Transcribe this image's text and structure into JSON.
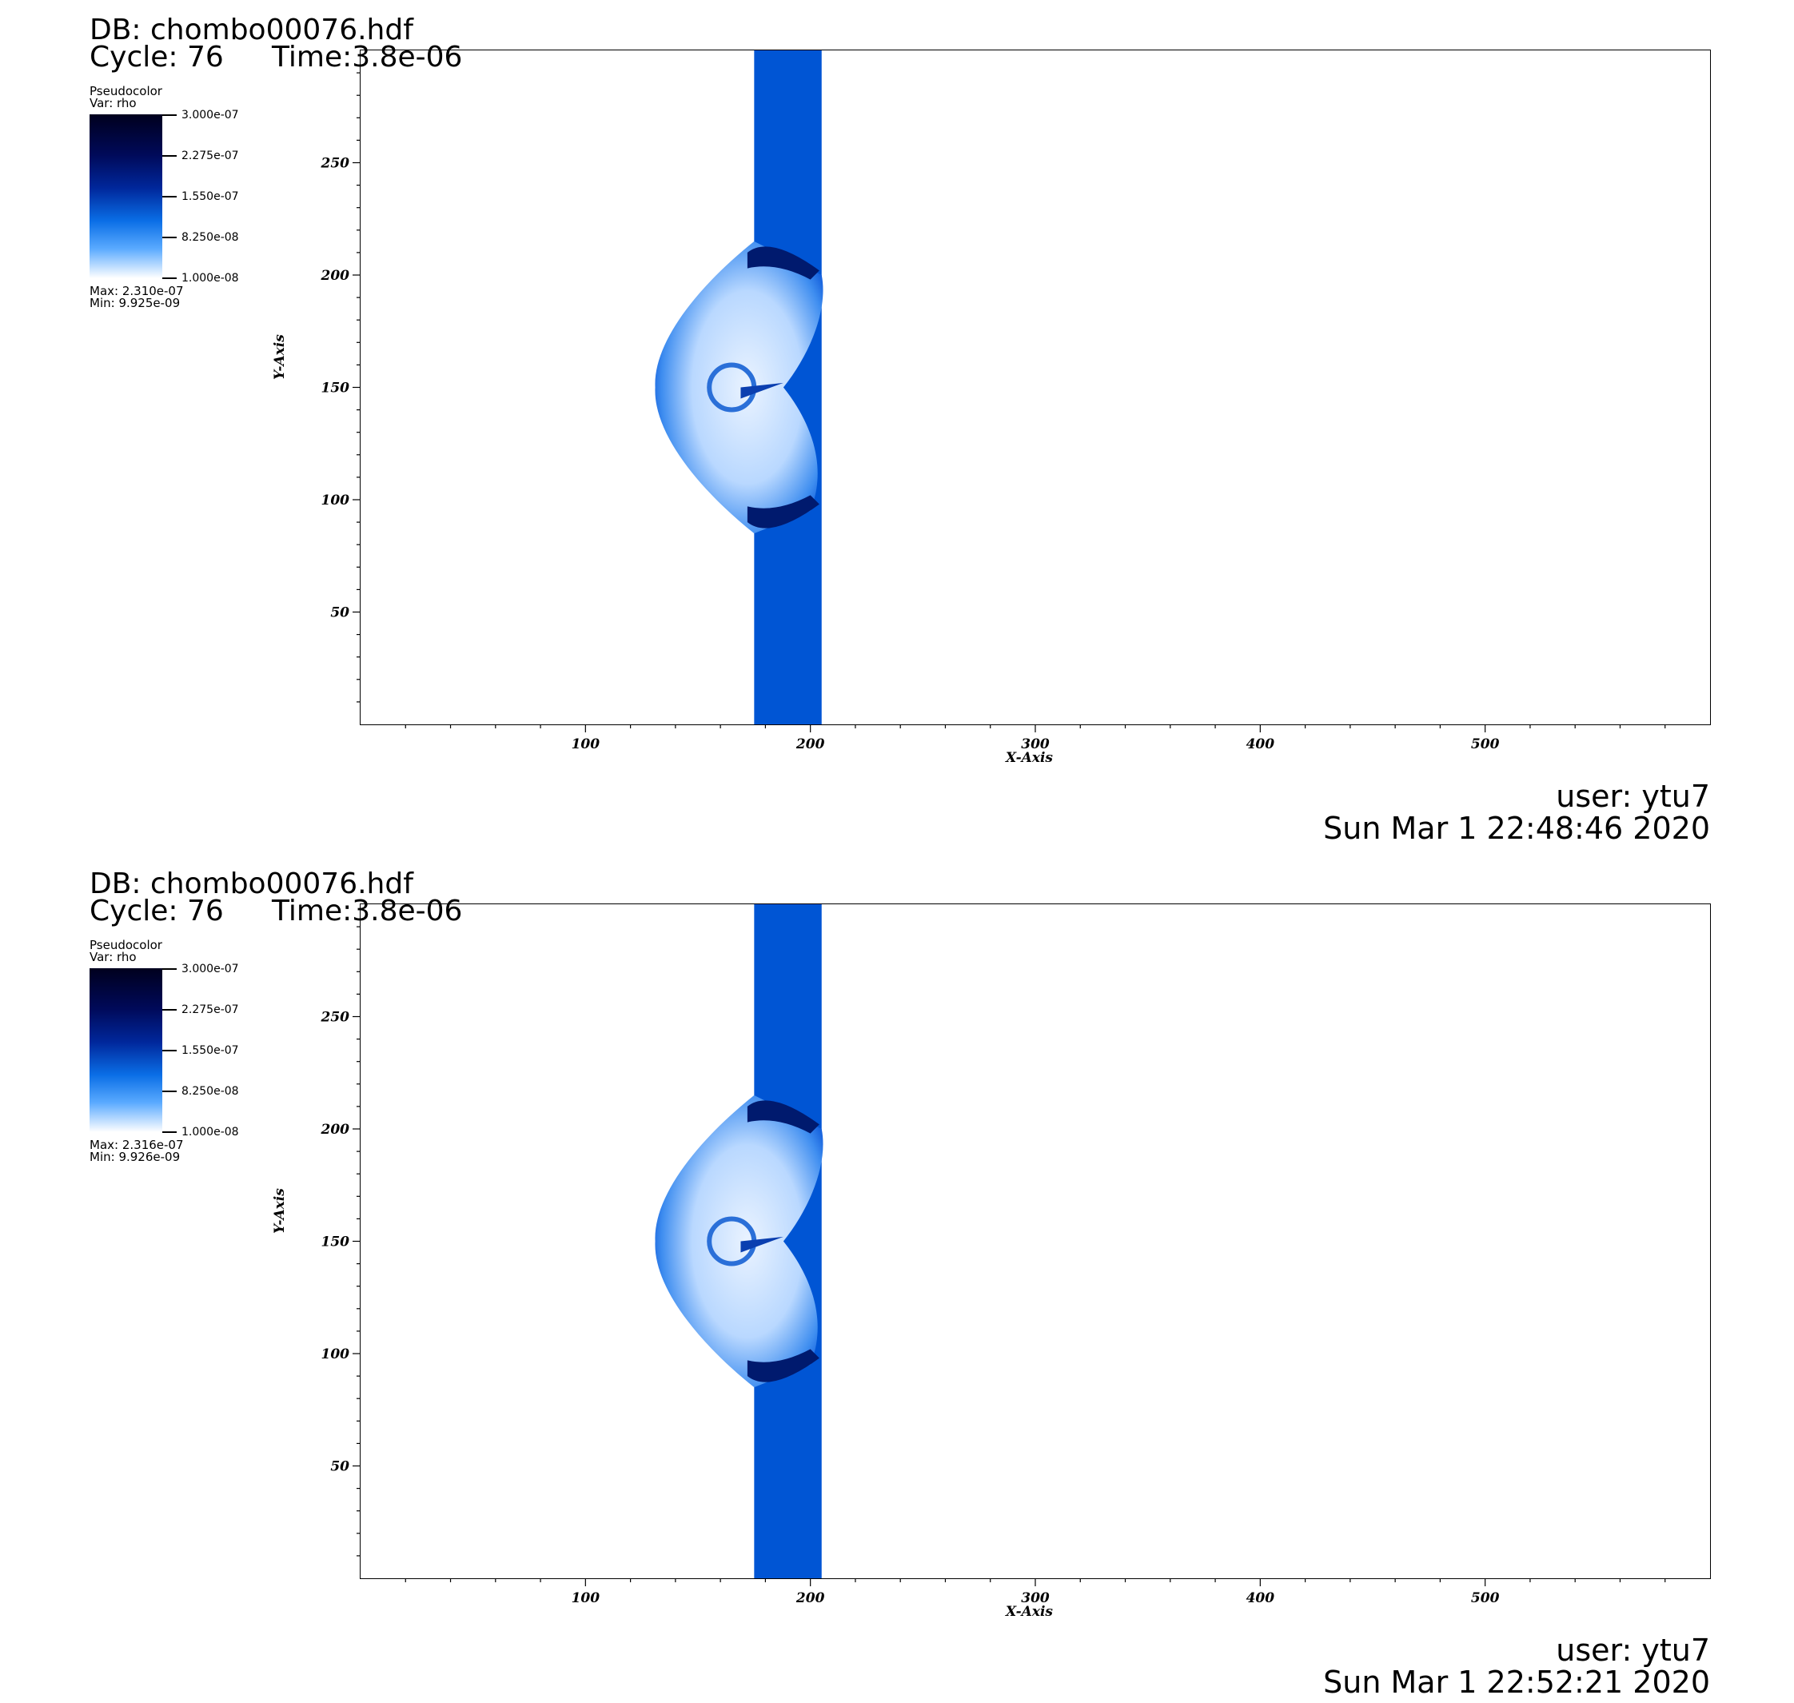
{
  "panels": [
    {
      "db": "DB: chombo00076.hdf",
      "cycle": "Cycle: 76",
      "time": "Time:3.8e-06",
      "legend": {
        "plot": "Pseudocolor",
        "var": "Var: rho",
        "ticks": [
          "3.000e-07",
          "2.275e-07",
          "1.550e-07",
          "8.250e-08",
          "1.000e-08"
        ],
        "max": "Max: 2.310e-07",
        "min": "Min: 9.925e-09"
      },
      "user": "user: ytu7",
      "date": "Sun Mar  1 22:48:46 2020"
    },
    {
      "db": "DB: chombo00076.hdf",
      "cycle": "Cycle: 76",
      "time": "Time:3.8e-06",
      "legend": {
        "plot": "Pseudocolor",
        "var": "Var: rho",
        "ticks": [
          "3.000e-07",
          "2.275e-07",
          "1.550e-07",
          "8.250e-08",
          "1.000e-08"
        ],
        "max": "Max: 2.316e-07",
        "min": "Min: 9.926e-09"
      },
      "user": "user: ytu7",
      "date": "Sun Mar  1 22:52:21 2020"
    }
  ],
  "chart_data": [
    {
      "type": "heatmap",
      "variable": "rho",
      "xlabel": "X-Axis",
      "ylabel": "Y-Axis",
      "xlim": [
        0,
        600
      ],
      "ylim": [
        0,
        300
      ],
      "xticks": [
        100,
        200,
        300,
        400,
        500
      ],
      "yticks": [
        50,
        100,
        150,
        200,
        250
      ],
      "color_range": [
        1e-08,
        3e-07
      ],
      "grid": false
    },
    {
      "type": "heatmap",
      "variable": "rho",
      "xlabel": "X-Axis",
      "ylabel": "Y-Axis",
      "xlim": [
        0,
        600
      ],
      "ylim": [
        0,
        300
      ],
      "xticks": [
        100,
        200,
        300,
        400,
        500
      ],
      "yticks": [
        50,
        100,
        150,
        200,
        250
      ],
      "color_range": [
        1e-08,
        3e-07
      ],
      "grid": false
    }
  ]
}
